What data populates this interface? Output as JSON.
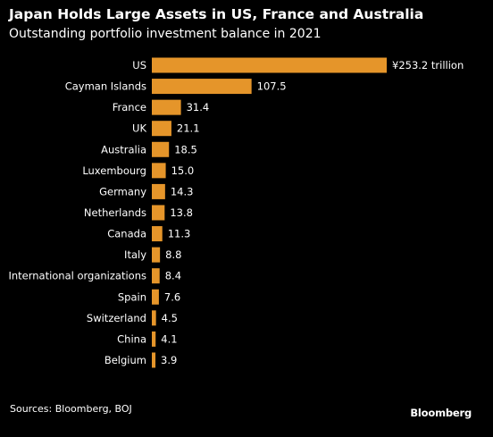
{
  "header": {
    "title": "Japan Holds Large Assets in US, France and Australia",
    "subtitle": "Outstanding portfolio investment balance in 2021"
  },
  "footer": {
    "source": "Sources: Bloomberg, BOJ",
    "brand": "Bloomberg"
  },
  "colors": {
    "background": "#000000",
    "bar": "#e5952a",
    "text": "#ffffff"
  },
  "chart_data": {
    "type": "bar",
    "orientation": "horizontal",
    "title": "Japan Holds Large Assets in US, France and Australia",
    "subtitle": "Outstanding portfolio investment balance in 2021",
    "categories": [
      "US",
      "Cayman Islands",
      "France",
      "UK",
      "Australia",
      "Luxembourg",
      "Germany",
      "Netherlands",
      "Canada",
      "Italy",
      "International organizations",
      "Spain",
      "Switzerland",
      "China",
      "Belgium"
    ],
    "values": [
      253.2,
      107.5,
      31.4,
      21.1,
      18.5,
      15.0,
      14.3,
      13.8,
      11.3,
      8.8,
      8.4,
      7.6,
      4.5,
      4.1,
      3.9
    ],
    "value_labels": [
      "¥253.2 trillion",
      "107.5",
      "31.4",
      "21.1",
      "18.5",
      "15.0",
      "14.3",
      "13.8",
      "11.3",
      "8.8",
      "8.4",
      "7.6",
      "4.5",
      "4.1",
      "3.9"
    ],
    "xlim": [
      0,
      253.2
    ],
    "grid": false,
    "legend": "none"
  }
}
